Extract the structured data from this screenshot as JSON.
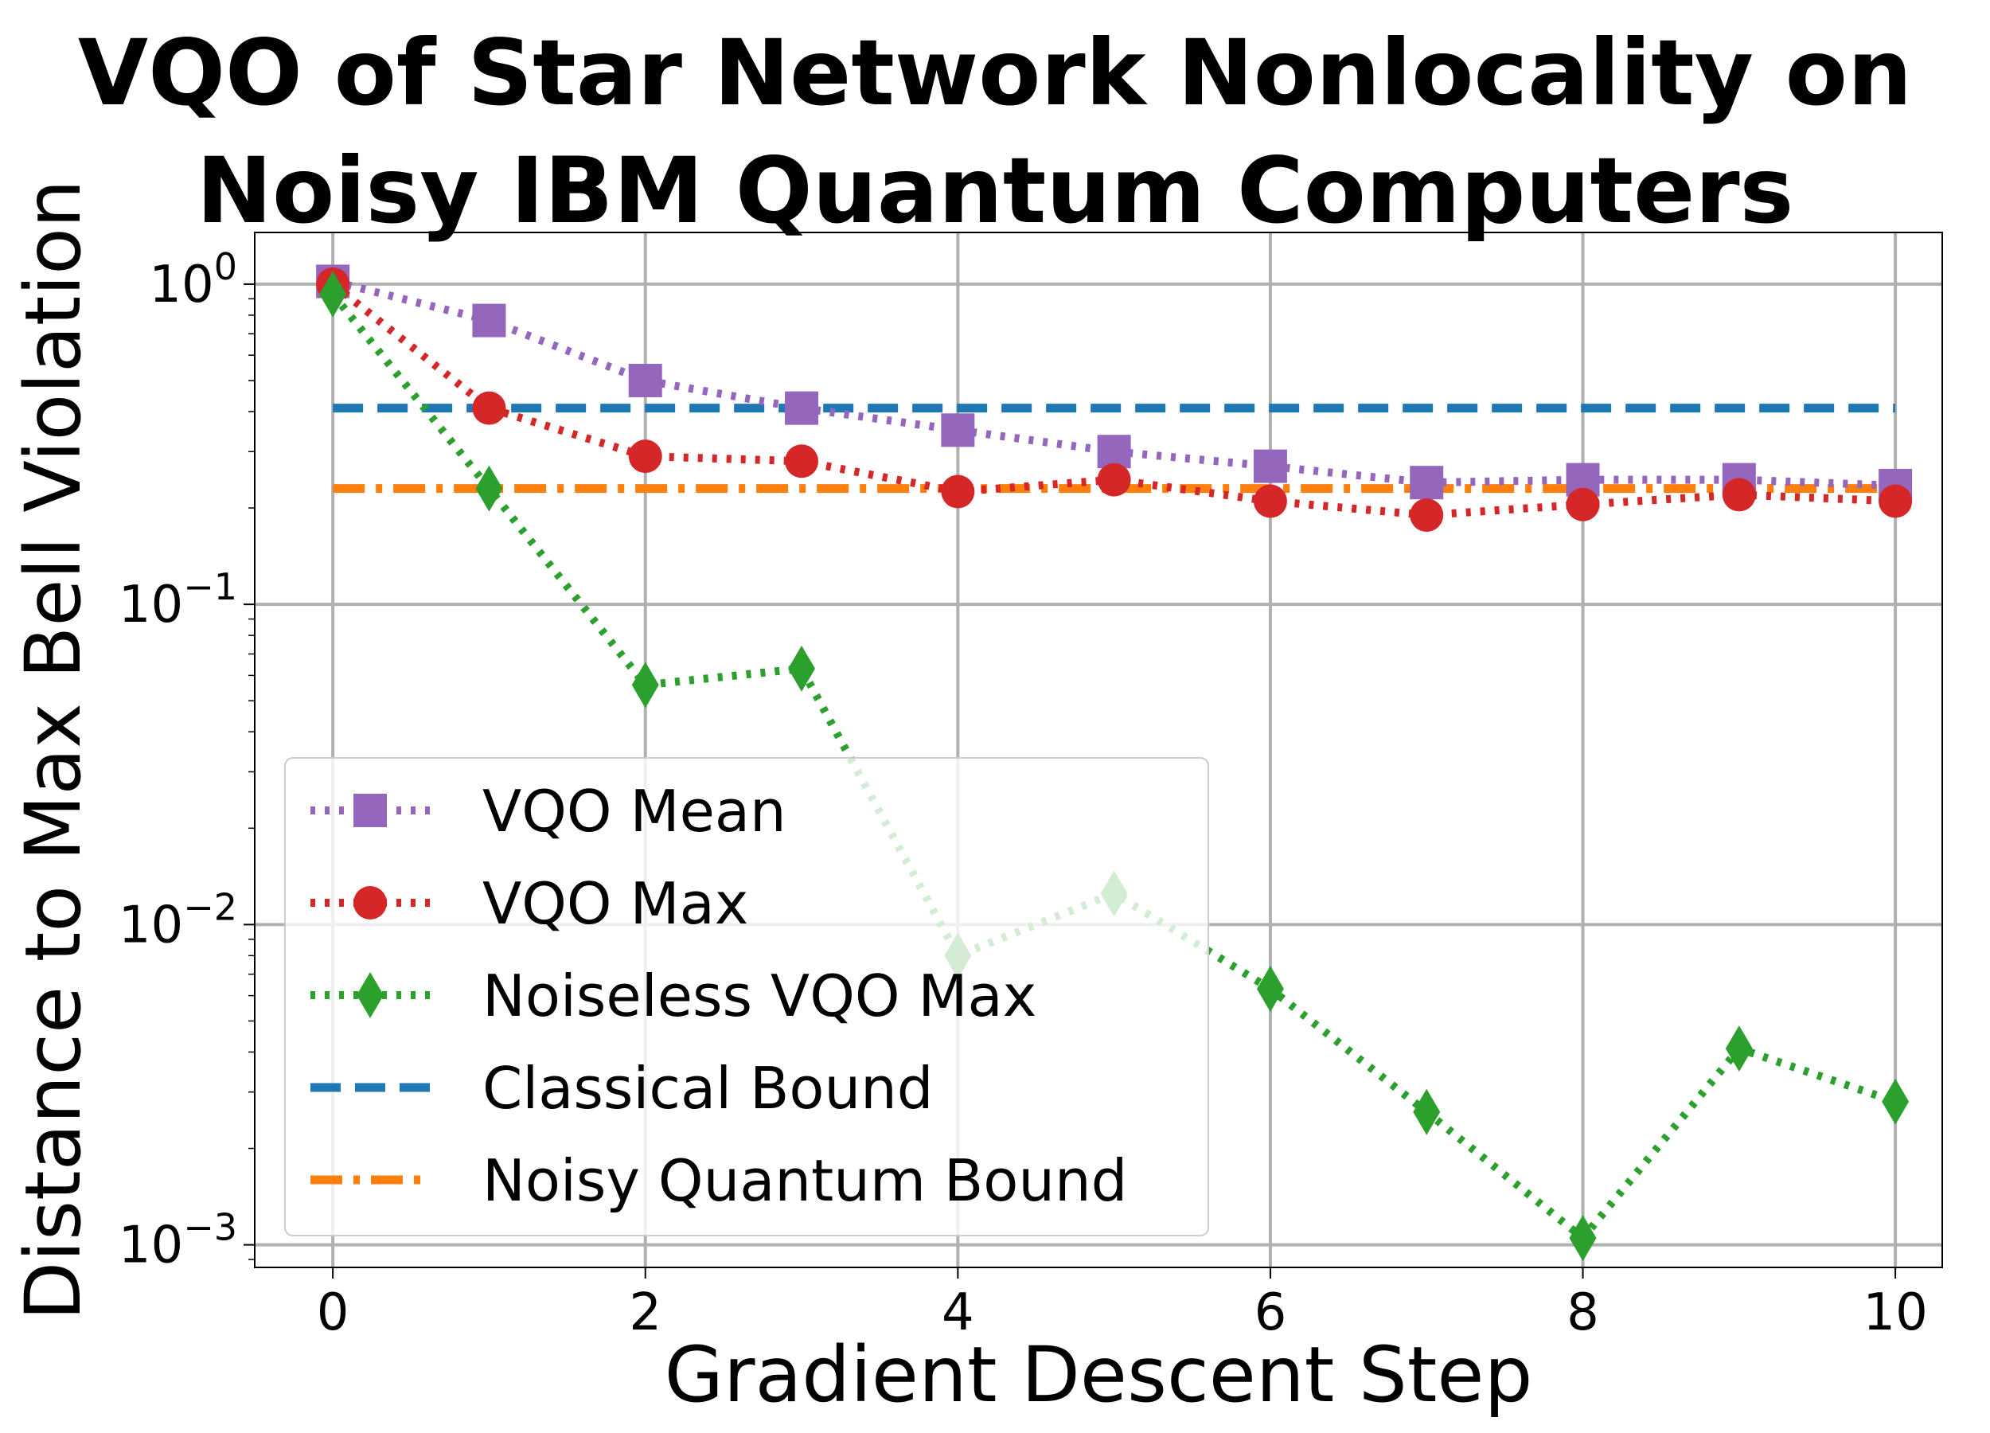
{
  "chart_data": {
    "type": "line",
    "title_lines": [
      "VQO of Star Network Nonlocality on",
      "Noisy IBM Quantum Computers"
    ],
    "xlabel": "Gradient Descent Step",
    "ylabel": "Distance to Max Bell Violation",
    "yscale": "log",
    "xlim": [
      -0.5,
      10.3
    ],
    "ylim": [
      0.00085,
      1.45
    ],
    "xticks": [
      0,
      2,
      4,
      6,
      8,
      10
    ],
    "yticks": [
      {
        "value": 1,
        "base": "10",
        "exp": "0"
      },
      {
        "value": 0.1,
        "base": "10",
        "exp": "−1"
      },
      {
        "value": 0.01,
        "base": "10",
        "exp": "−2"
      },
      {
        "value": 0.001,
        "base": "10",
        "exp": "−3"
      }
    ],
    "grid": true,
    "legend_position": "lower-left",
    "x": [
      0,
      1,
      2,
      3,
      4,
      5,
      6,
      7,
      8,
      9,
      10
    ],
    "series": [
      {
        "name": "VQO Mean",
        "color": "#9467bd",
        "marker": "square",
        "linestyle": "dotted",
        "values": [
          1.02,
          0.77,
          0.5,
          0.41,
          0.35,
          0.3,
          0.27,
          0.24,
          0.245,
          0.245,
          0.235
        ]
      },
      {
        "name": "VQO Max",
        "color": "#d62728",
        "marker": "circle",
        "linestyle": "dotted",
        "values": [
          1.0,
          0.41,
          0.29,
          0.28,
          0.225,
          0.245,
          0.21,
          0.19,
          0.205,
          0.22,
          0.21
        ]
      },
      {
        "name": "Noiseless VQO Max",
        "color": "#2ca02c",
        "marker": "diamond",
        "linestyle": "dotted",
        "values": [
          0.93,
          0.23,
          0.056,
          0.063,
          0.008,
          0.0125,
          0.0063,
          0.0026,
          0.00105,
          0.0041,
          0.0028
        ]
      },
      {
        "name": "Classical Bound",
        "color": "#1f77b4",
        "marker": "none",
        "linestyle": "dashed",
        "values": [
          0.41,
          0.41,
          0.41,
          0.41,
          0.41,
          0.41,
          0.41,
          0.41,
          0.41,
          0.41,
          0.41
        ]
      },
      {
        "name": "Noisy Quantum Bound",
        "color": "#ff7f0e",
        "marker": "none",
        "linestyle": "dashdot",
        "values": [
          0.23,
          0.23,
          0.23,
          0.23,
          0.23,
          0.23,
          0.23,
          0.23,
          0.23,
          0.23,
          0.23
        ]
      }
    ]
  }
}
